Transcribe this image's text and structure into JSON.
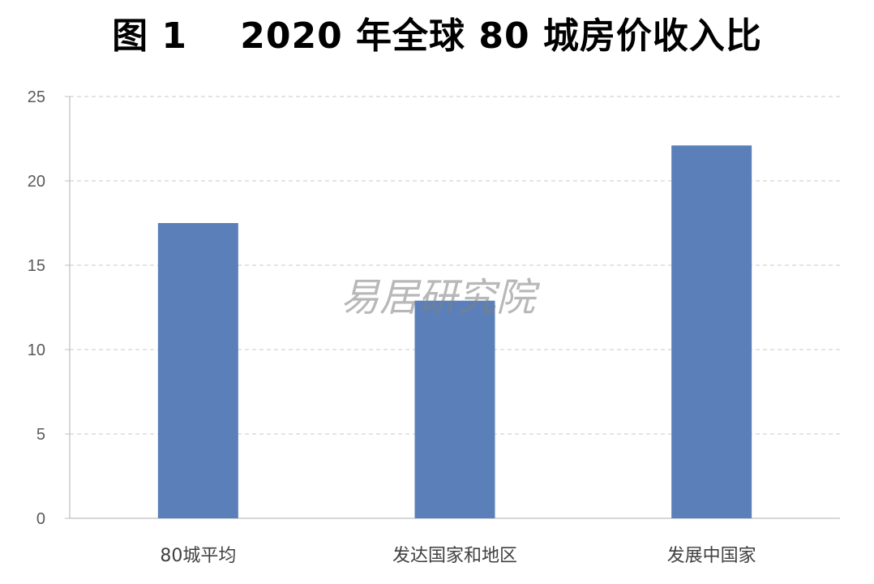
{
  "chart_data": {
    "type": "bar",
    "title": "图 1    2020 年全球 80 城房价收入比",
    "categories": [
      "80城平均",
      "发达国家和地区",
      "发展中国家"
    ],
    "values": [
      17.5,
      12.9,
      22.1
    ],
    "ylim": [
      0,
      25
    ],
    "yticks": [
      0,
      5,
      10,
      15,
      20,
      25
    ],
    "grid": true,
    "bar_color": "#5b80b9",
    "grid_color": "#c8c8c8",
    "axis_color": "#bfbfbf"
  },
  "watermark": "易居研究院"
}
